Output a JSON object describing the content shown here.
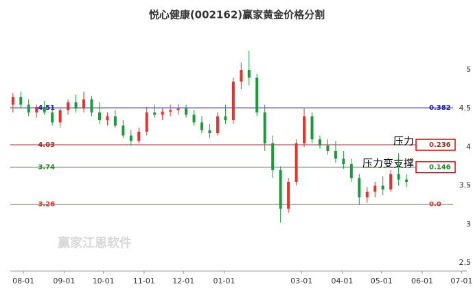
{
  "chart_data": {
    "type": "candlestick",
    "title": "悦心健康(002162)赢家黄金价格分割",
    "watermark": "赢家江恩软件",
    "x": [
      -8,
      -2,
      4,
      10,
      16,
      22,
      28,
      34,
      40,
      46,
      52,
      58,
      64,
      70,
      76,
      82,
      88,
      94,
      100,
      106,
      112,
      118,
      124,
      130,
      136,
      142,
      148,
      154,
      160,
      166,
      172,
      178,
      184,
      190,
      196,
      202,
      208,
      214,
      220,
      226,
      232,
      238,
      244,
      250,
      256,
      262,
      268,
      274,
      280,
      286,
      292
    ],
    "open": [
      4.55,
      4.65,
      4.55,
      4.45,
      4.52,
      4.45,
      4.32,
      4.48,
      4.58,
      4.5,
      4.62,
      4.45,
      4.35,
      4.4,
      4.28,
      4.15,
      4.08,
      4.2,
      4.45,
      4.42,
      4.46,
      4.48,
      4.5,
      4.42,
      4.32,
      4.22,
      4.18,
      4.4,
      4.35,
      4.85,
      5.0,
      4.9,
      4.45,
      4.05,
      3.7,
      3.2,
      3.55,
      4.05,
      4.4,
      4.1,
      4.02,
      3.95,
      3.85,
      3.78,
      3.6,
      3.35,
      3.42,
      3.5,
      3.45,
      3.65,
      3.58
    ],
    "high": [
      4.7,
      4.72,
      4.62,
      4.55,
      4.6,
      4.5,
      4.5,
      4.62,
      4.68,
      4.72,
      4.66,
      4.58,
      4.45,
      4.48,
      4.35,
      4.22,
      4.25,
      4.52,
      4.55,
      4.5,
      4.55,
      4.56,
      4.55,
      4.48,
      4.4,
      4.3,
      4.45,
      4.55,
      4.9,
      5.1,
      5.25,
      4.95,
      4.55,
      4.15,
      3.75,
      3.6,
      4.1,
      4.5,
      4.45,
      4.15,
      4.1,
      4.08,
      3.95,
      3.85,
      3.65,
      3.48,
      3.55,
      3.62,
      3.7,
      3.92,
      3.65
    ],
    "low": [
      4.45,
      4.5,
      4.4,
      4.38,
      4.42,
      4.28,
      4.25,
      4.42,
      4.45,
      4.45,
      4.4,
      4.3,
      4.28,
      4.25,
      4.12,
      4.02,
      4.05,
      4.15,
      4.38,
      4.35,
      4.4,
      4.42,
      4.38,
      4.28,
      4.18,
      4.12,
      4.15,
      4.3,
      4.3,
      4.75,
      4.8,
      4.4,
      3.95,
      3.6,
      3.02,
      3.15,
      3.5,
      4.0,
      4.05,
      3.98,
      3.9,
      3.8,
      3.72,
      3.55,
      3.25,
      3.28,
      3.35,
      3.38,
      3.42,
      3.5,
      3.48
    ],
    "close": [
      4.65,
      4.55,
      4.45,
      4.52,
      4.45,
      4.32,
      4.48,
      4.58,
      4.5,
      4.62,
      4.45,
      4.35,
      4.4,
      4.28,
      4.15,
      4.08,
      4.2,
      4.45,
      4.42,
      4.46,
      4.48,
      4.5,
      4.42,
      4.32,
      4.22,
      4.18,
      4.4,
      4.35,
      4.85,
      5.0,
      4.9,
      4.45,
      4.05,
      3.7,
      3.2,
      3.55,
      4.05,
      4.4,
      4.1,
      4.02,
      3.95,
      3.85,
      3.78,
      3.6,
      3.35,
      3.42,
      3.5,
      3.45,
      3.65,
      3.58,
      3.55
    ],
    "up_color": "#e8312a",
    "down_color": "#1a9a3a",
    "xlim": [
      -10,
      338
    ],
    "xticks": [
      {
        "value": 0,
        "label": "08-01"
      },
      {
        "value": 31,
        "label": "09-01"
      },
      {
        "value": 61,
        "label": "10-01"
      },
      {
        "value": 92,
        "label": "11-01"
      },
      {
        "value": 122,
        "label": "12-01"
      },
      {
        "value": 153,
        "label": "01-01"
      },
      {
        "value": 212,
        "label": "03-01"
      },
      {
        "value": 243,
        "label": "04-01"
      },
      {
        "value": 273,
        "label": "05-01"
      },
      {
        "value": 304,
        "label": "06-01"
      },
      {
        "value": 334,
        "label": "07-01"
      }
    ],
    "ylim": [
      2.4,
      5.5
    ],
    "yticks": [
      2.5,
      3,
      3.5,
      4,
      4.5,
      5
    ],
    "levels": [
      {
        "price": 4.51,
        "ratio": 0.382,
        "color": "#1a1acc"
      },
      {
        "price": 4.03,
        "ratio": 0.236,
        "color": "#a52a2a",
        "boxed": true,
        "annotation": "压力"
      },
      {
        "price": 3.74,
        "ratio": 0.146,
        "color": "#1f8a1f",
        "boxed": true,
        "annotation": "压力变支撑"
      },
      {
        "price": 3.26,
        "ratio": 0,
        "ratio_label": "0.0",
        "color": "#e8312a"
      }
    ]
  }
}
